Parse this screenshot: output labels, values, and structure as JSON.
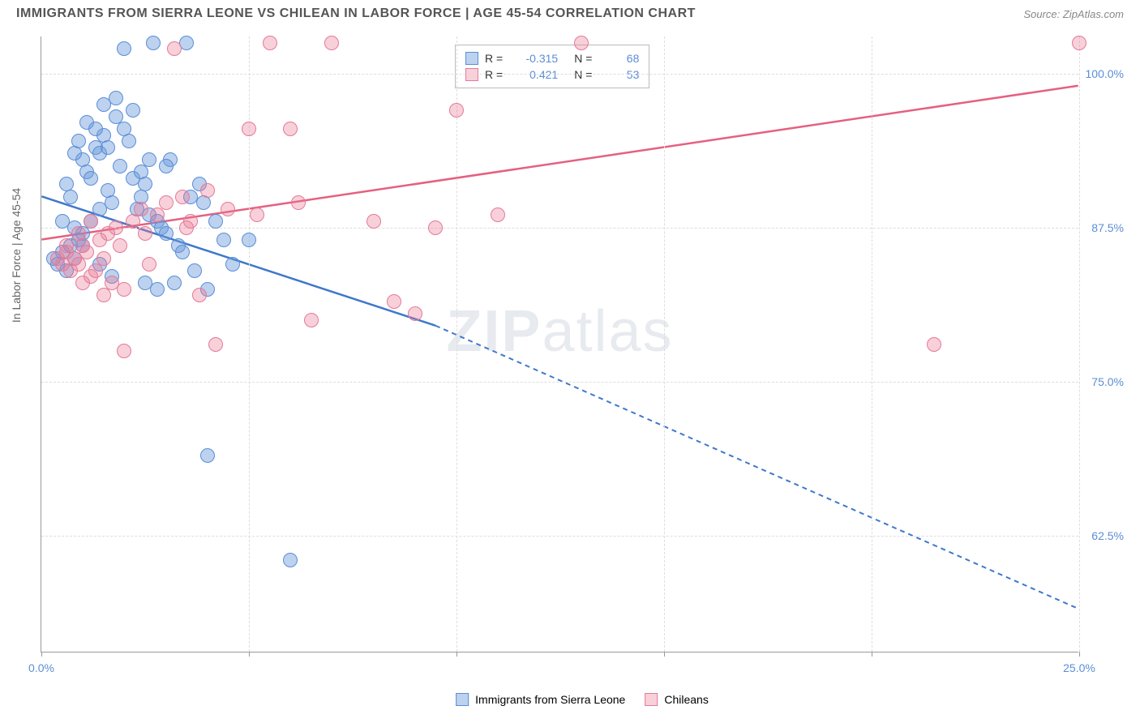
{
  "header": {
    "title": "IMMIGRANTS FROM SIERRA LEONE VS CHILEAN IN LABOR FORCE | AGE 45-54 CORRELATION CHART",
    "source": "Source: ZipAtlas.com"
  },
  "chart": {
    "type": "scatter",
    "y_axis_label": "In Labor Force | Age 45-54",
    "watermark": "ZIPatlas",
    "xlim": [
      0,
      25
    ],
    "ylim": [
      53,
      103
    ],
    "x_ticks": [
      0,
      5,
      10,
      15,
      20,
      25
    ],
    "x_tick_labels": [
      "0.0%",
      "",
      "",
      "",
      "",
      "25.0%"
    ],
    "y_ticks": [
      62.5,
      75.0,
      87.5,
      100.0
    ],
    "y_tick_labels": [
      "62.5%",
      "75.0%",
      "87.5%",
      "100.0%"
    ],
    "grid_color": "#dddddd",
    "background_color": "#ffffff",
    "axis_color": "#999999",
    "label_color": "#5b8dd6",
    "series": [
      {
        "name": "Immigrants from Sierra Leone",
        "fill_color": "rgba(106,156,220,0.45)",
        "stroke_color": "#5b8dd6",
        "line_color": "#3f78c9",
        "r_value": "-0.315",
        "n_value": "68",
        "trend": {
          "x1": 0,
          "y1": 90.0,
          "x2": 9.5,
          "y2": 79.5,
          "x2_ext": 25,
          "y2_ext": 56.5
        },
        "points": [
          [
            0.3,
            85.0
          ],
          [
            0.4,
            84.5
          ],
          [
            0.5,
            85.5
          ],
          [
            0.6,
            84.0
          ],
          [
            0.7,
            86.0
          ],
          [
            0.8,
            85.0
          ],
          [
            0.9,
            86.5
          ],
          [
            1.0,
            93.0
          ],
          [
            1.1,
            92.0
          ],
          [
            1.2,
            91.5
          ],
          [
            1.3,
            94.0
          ],
          [
            1.4,
            93.5
          ],
          [
            1.5,
            95.0
          ],
          [
            1.6,
            90.5
          ],
          [
            1.7,
            89.5
          ],
          [
            1.8,
            96.5
          ],
          [
            1.9,
            92.5
          ],
          [
            2.0,
            95.5
          ],
          [
            2.1,
            94.5
          ],
          [
            2.2,
            97.0
          ],
          [
            2.3,
            89.0
          ],
          [
            2.4,
            90.0
          ],
          [
            2.5,
            91.0
          ],
          [
            2.6,
            88.5
          ],
          [
            2.7,
            102.5
          ],
          [
            2.8,
            88.0
          ],
          [
            2.9,
            87.5
          ],
          [
            3.0,
            87.0
          ],
          [
            3.1,
            93.0
          ],
          [
            3.2,
            83.0
          ],
          [
            3.3,
            86.0
          ],
          [
            3.4,
            85.5
          ],
          [
            3.5,
            102.5
          ],
          [
            3.6,
            90.0
          ],
          [
            3.7,
            84.0
          ],
          [
            3.8,
            91.0
          ],
          [
            3.9,
            89.5
          ],
          [
            4.0,
            82.5
          ],
          [
            4.2,
            88.0
          ],
          [
            4.4,
            86.5
          ],
          [
            4.6,
            84.5
          ],
          [
            1.0,
            87.0
          ],
          [
            1.2,
            88.0
          ],
          [
            1.4,
            89.0
          ],
          [
            0.8,
            93.5
          ],
          [
            0.9,
            94.5
          ],
          [
            5.0,
            86.5
          ],
          [
            2.0,
            102.0
          ],
          [
            4.0,
            69.0
          ],
          [
            6.0,
            60.5
          ],
          [
            2.5,
            83.0
          ],
          [
            2.8,
            82.5
          ],
          [
            1.5,
            97.5
          ],
          [
            1.8,
            98.0
          ],
          [
            2.2,
            91.5
          ],
          [
            0.6,
            91.0
          ],
          [
            0.7,
            90.0
          ],
          [
            1.1,
            96.0
          ],
          [
            1.3,
            95.5
          ],
          [
            1.6,
            94.0
          ],
          [
            2.4,
            92.0
          ],
          [
            2.6,
            93.0
          ],
          [
            3.0,
            92.5
          ],
          [
            0.5,
            88.0
          ],
          [
            0.8,
            87.5
          ],
          [
            1.0,
            86.0
          ],
          [
            1.4,
            84.5
          ],
          [
            1.7,
            83.5
          ]
        ]
      },
      {
        "name": "Chileans",
        "fill_color": "rgba(235,120,150,0.35)",
        "stroke_color": "#e47a97",
        "line_color": "#e5607f",
        "r_value": "0.421",
        "n_value": "53",
        "trend": {
          "x1": 0,
          "y1": 86.5,
          "x2": 25,
          "y2": 99.0
        },
        "points": [
          [
            0.4,
            85.0
          ],
          [
            0.5,
            84.5
          ],
          [
            0.6,
            85.5
          ],
          [
            0.7,
            84.0
          ],
          [
            0.8,
            85.0
          ],
          [
            0.9,
            84.5
          ],
          [
            1.0,
            86.0
          ],
          [
            1.1,
            85.5
          ],
          [
            1.2,
            83.5
          ],
          [
            1.3,
            84.0
          ],
          [
            1.4,
            86.5
          ],
          [
            1.5,
            85.0
          ],
          [
            1.6,
            87.0
          ],
          [
            1.7,
            83.0
          ],
          [
            1.8,
            87.5
          ],
          [
            1.9,
            86.0
          ],
          [
            2.0,
            82.5
          ],
          [
            2.2,
            88.0
          ],
          [
            2.4,
            89.0
          ],
          [
            2.6,
            84.5
          ],
          [
            2.8,
            88.5
          ],
          [
            3.0,
            89.5
          ],
          [
            3.2,
            102.0
          ],
          [
            3.4,
            90.0
          ],
          [
            3.6,
            88.0
          ],
          [
            3.8,
            82.0
          ],
          [
            4.0,
            90.5
          ],
          [
            4.5,
            89.0
          ],
          [
            5.0,
            95.5
          ],
          [
            5.2,
            88.5
          ],
          [
            5.5,
            102.5
          ],
          [
            6.0,
            95.5
          ],
          [
            6.2,
            89.5
          ],
          [
            6.5,
            80.0
          ],
          [
            7.0,
            102.5
          ],
          [
            8.0,
            88.0
          ],
          [
            8.5,
            81.5
          ],
          [
            9.0,
            80.5
          ],
          [
            9.5,
            87.5
          ],
          [
            10.0,
            97.0
          ],
          [
            11.0,
            88.5
          ],
          [
            13.0,
            102.5
          ],
          [
            21.5,
            78.0
          ],
          [
            25.0,
            102.5
          ],
          [
            1.0,
            83.0
          ],
          [
            1.5,
            82.0
          ],
          [
            2.0,
            77.5
          ],
          [
            2.5,
            87.0
          ],
          [
            3.5,
            87.5
          ],
          [
            4.2,
            78.0
          ],
          [
            0.6,
            86.0
          ],
          [
            0.9,
            87.0
          ],
          [
            1.2,
            88.0
          ]
        ]
      }
    ],
    "legend_labels": {
      "r_prefix": "R =",
      "n_prefix": "N ="
    },
    "bottom_legend": [
      "Immigrants from Sierra Leone",
      "Chileans"
    ]
  }
}
